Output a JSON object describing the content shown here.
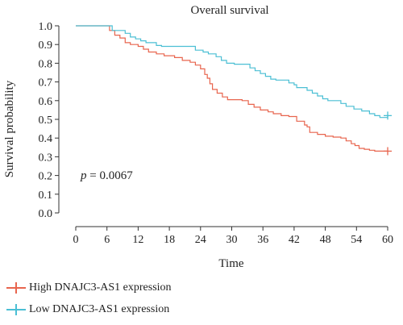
{
  "chart_data": {
    "type": "line",
    "title": "Overall survival",
    "xlabel": "Time",
    "ylabel": "Survival probability",
    "xlim": [
      0,
      60
    ],
    "ylim": [
      0,
      1
    ],
    "xticks": [
      0,
      6,
      12,
      18,
      24,
      30,
      36,
      42,
      48,
      54,
      60
    ],
    "yticks": [
      0.0,
      0.1,
      0.2,
      0.3,
      0.4,
      0.5,
      0.6,
      0.7,
      0.8,
      0.9,
      1.0
    ],
    "annotation": {
      "italic": "p",
      "text": " = 0.0067"
    },
    "series": [
      {
        "name": "High DNAJC3-AS1 expression",
        "color": "#e8654e",
        "step": true,
        "points": [
          [
            0,
            1.0
          ],
          [
            6,
            1.0
          ],
          [
            6.5,
            0.975
          ],
          [
            7.5,
            0.95
          ],
          [
            8.5,
            0.935
          ],
          [
            9.5,
            0.91
          ],
          [
            10.5,
            0.9
          ],
          [
            12,
            0.89
          ],
          [
            13,
            0.875
          ],
          [
            14,
            0.86
          ],
          [
            15.5,
            0.85
          ],
          [
            17,
            0.84
          ],
          [
            19,
            0.83
          ],
          [
            20.5,
            0.815
          ],
          [
            22,
            0.805
          ],
          [
            23,
            0.79
          ],
          [
            24,
            0.77
          ],
          [
            24.8,
            0.74
          ],
          [
            25.3,
            0.72
          ],
          [
            25.8,
            0.69
          ],
          [
            26.3,
            0.66
          ],
          [
            27.2,
            0.64
          ],
          [
            28.2,
            0.62
          ],
          [
            29.2,
            0.605
          ],
          [
            32,
            0.6
          ],
          [
            33.2,
            0.58
          ],
          [
            34.3,
            0.565
          ],
          [
            35.5,
            0.55
          ],
          [
            37,
            0.54
          ],
          [
            38,
            0.53
          ],
          [
            39.5,
            0.52
          ],
          [
            41,
            0.515
          ],
          [
            42.5,
            0.49
          ],
          [
            44,
            0.47
          ],
          [
            44.5,
            0.46
          ],
          [
            45,
            0.43
          ],
          [
            46.5,
            0.42
          ],
          [
            48,
            0.41
          ],
          [
            49.5,
            0.405
          ],
          [
            51,
            0.4
          ],
          [
            52,
            0.385
          ],
          [
            53,
            0.37
          ],
          [
            53.7,
            0.36
          ],
          [
            54.5,
            0.345
          ],
          [
            55.5,
            0.34
          ],
          [
            56.5,
            0.335
          ],
          [
            57.5,
            0.33
          ],
          [
            60,
            0.33
          ]
        ],
        "censor": [
          [
            60,
            0.33
          ]
        ]
      },
      {
        "name": "Low DNAJC3-AS1 expression",
        "color": "#4bbfd4",
        "step": true,
        "points": [
          [
            0,
            1.0
          ],
          [
            5,
            1.0
          ],
          [
            7,
            0.975
          ],
          [
            9.5,
            0.96
          ],
          [
            10.5,
            0.94
          ],
          [
            11.5,
            0.93
          ],
          [
            12.5,
            0.92
          ],
          [
            13.5,
            0.91
          ],
          [
            15.5,
            0.895
          ],
          [
            16.5,
            0.89
          ],
          [
            23,
            0.87
          ],
          [
            24.5,
            0.86
          ],
          [
            25.5,
            0.85
          ],
          [
            27,
            0.835
          ],
          [
            28,
            0.815
          ],
          [
            29,
            0.8
          ],
          [
            30.5,
            0.795
          ],
          [
            33.5,
            0.775
          ],
          [
            34.5,
            0.76
          ],
          [
            35.5,
            0.745
          ],
          [
            36.5,
            0.73
          ],
          [
            37.5,
            0.715
          ],
          [
            38.5,
            0.71
          ],
          [
            41,
            0.695
          ],
          [
            42,
            0.685
          ],
          [
            42.5,
            0.67
          ],
          [
            44.5,
            0.655
          ],
          [
            45.5,
            0.64
          ],
          [
            46.5,
            0.625
          ],
          [
            47.5,
            0.61
          ],
          [
            48.5,
            0.6
          ],
          [
            51,
            0.585
          ],
          [
            52,
            0.57
          ],
          [
            53.5,
            0.555
          ],
          [
            55,
            0.545
          ],
          [
            56.5,
            0.53
          ],
          [
            57.5,
            0.52
          ],
          [
            58.5,
            0.51
          ],
          [
            60,
            0.52
          ]
        ],
        "censor": [
          [
            60,
            0.52
          ]
        ]
      }
    ]
  }
}
